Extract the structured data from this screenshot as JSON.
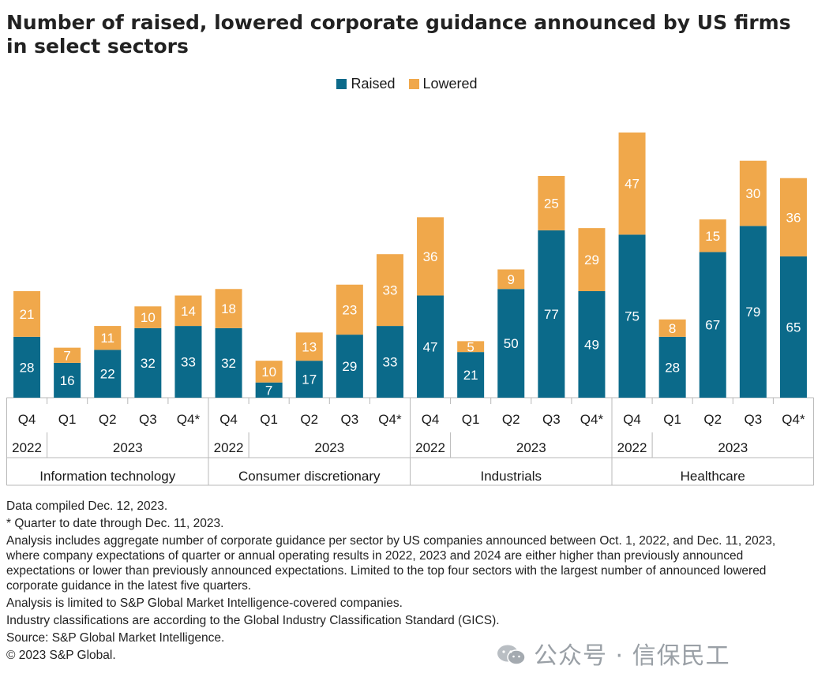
{
  "title": "Number of raised, lowered corporate guidance announced by US firms in select sectors",
  "legend": [
    {
      "label": "Raised",
      "color": "#0b6a8a"
    },
    {
      "label": "Lowered",
      "color": "#f0a84b"
    }
  ],
  "chart_data": {
    "type": "bar",
    "stacked": true,
    "groups": [
      {
        "name": "Information technology",
        "quarters": [
          {
            "q": "Q4",
            "year": "2022"
          },
          {
            "q": "Q1",
            "year": "2023"
          },
          {
            "q": "Q2",
            "year": "2023"
          },
          {
            "q": "Q3",
            "year": "2023"
          },
          {
            "q": "Q4*",
            "year": "2023"
          }
        ],
        "raised": [
          28,
          16,
          22,
          32,
          33
        ],
        "lowered": [
          21,
          7,
          11,
          10,
          14
        ]
      },
      {
        "name": "Consumer discretionary",
        "quarters": [
          {
            "q": "Q4",
            "year": "2022"
          },
          {
            "q": "Q1",
            "year": "2023"
          },
          {
            "q": "Q2",
            "year": "2023"
          },
          {
            "q": "Q3",
            "year": "2023"
          },
          {
            "q": "Q4*",
            "year": "2023"
          }
        ],
        "raised": [
          32,
          7,
          17,
          29,
          33
        ],
        "lowered": [
          18,
          10,
          13,
          23,
          33
        ]
      },
      {
        "name": "Industrials",
        "quarters": [
          {
            "q": "Q4",
            "year": "2022"
          },
          {
            "q": "Q1",
            "year": "2023"
          },
          {
            "q": "Q2",
            "year": "2023"
          },
          {
            "q": "Q3",
            "year": "2023"
          },
          {
            "q": "Q4*",
            "year": "2023"
          }
        ],
        "raised": [
          47,
          21,
          50,
          77,
          49
        ],
        "lowered": [
          36,
          5,
          9,
          25,
          29
        ]
      },
      {
        "name": "Healthcare",
        "quarters": [
          {
            "q": "Q4",
            "year": "2022"
          },
          {
            "q": "Q1",
            "year": "2023"
          },
          {
            "q": "Q2",
            "year": "2023"
          },
          {
            "q": "Q3",
            "year": "2023"
          },
          {
            "q": "Q4*",
            "year": "2023"
          }
        ],
        "raised": [
          75,
          28,
          67,
          79,
          65
        ],
        "lowered": [
          47,
          8,
          15,
          30,
          36
        ]
      }
    ],
    "series": [
      {
        "name": "Raised",
        "color": "#0b6a8a"
      },
      {
        "name": "Lowered",
        "color": "#f0a84b"
      }
    ],
    "ylim": [
      0,
      125
    ],
    "grid": false,
    "legend_position": "top-center"
  },
  "notes": [
    "Data compiled Dec. 12, 2023.",
    "* Quarter to date through Dec. 11, 2023.",
    "Analysis includes aggregate number of corporate guidance per sector by US companies announced between Oct. 1, 2022, and Dec. 11, 2023, where company expectations of quarter or annual operating results in 2022, 2023 and 2024 are either higher than previously announced expectations or lower than previously announced expectations. Limited to the top four sectors with the largest number of announced lowered corporate guidance in the latest five quarters.",
    "Analysis is limited to S&P Global Market Intelligence-covered companies.",
    "Industry classifications are according to the Global Industry Classification Standard (GICS).",
    "Source: S&P Global Market Intelligence.",
    "© 2023 S&P Global."
  ],
  "watermark": "公众号 · 信保民工"
}
